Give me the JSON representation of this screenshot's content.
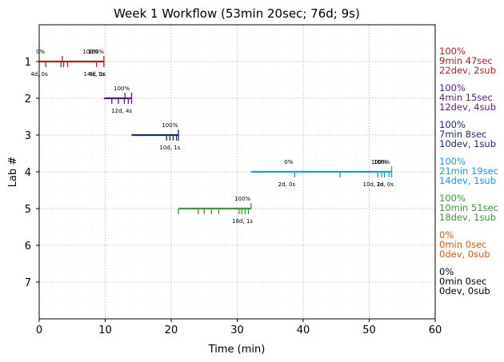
{
  "chart_data": {
    "type": "line",
    "title": "Week 1 Workflow (53min 20sec; 76d; 9s)",
    "xlabel": "Time (min)",
    "ylabel": "Lab #",
    "xlim": [
      0,
      60
    ],
    "ylim": [
      8,
      0
    ],
    "xticks": [
      "0",
      "10",
      "20",
      "30",
      "40",
      "50",
      "60"
    ],
    "yticks": [
      "1",
      "2",
      "3",
      "4",
      "5",
      "6",
      "7"
    ],
    "grid": "dotted",
    "series": [
      {
        "lab": 1,
        "color": "#b22222",
        "segment": [
          0,
          9.8
        ],
        "dev_ticks": [
          1.0,
          3.3,
          3.7,
          4.3,
          8.7,
          9.8
        ],
        "sub_ticks": [
          3.5,
          9.8
        ],
        "pct_labels": [
          {
            "x": 0.2,
            "text": "0%"
          },
          {
            "x": 7.8,
            "text": "100%"
          },
          {
            "x": 8.6,
            "text": "100%"
          }
        ],
        "stat_labels": [
          {
            "x": 0,
            "text": "4d, 0s"
          },
          {
            "x": 8.3,
            "text": "14d, 1s"
          },
          {
            "x": 8.8,
            "text": "4d, 1s"
          }
        ],
        "stats": [
          "100%",
          "9min 47sec",
          "22dev, 2sub"
        ]
      },
      {
        "lab": 2,
        "color": "#5b1a8b",
        "segment": [
          9.8,
          14.0
        ],
        "dev_ticks": [
          11.0,
          12.0,
          12.9,
          13.5,
          14.0
        ],
        "sub_ticks": [
          13.0,
          14.0
        ],
        "pct_labels": [
          {
            "x": 12.5,
            "text": "100%"
          }
        ],
        "stat_labels": [
          {
            "x": 12.5,
            "text": "12d, 4s"
          }
        ],
        "stats": [
          "100%",
          "4min 15sec",
          "12dev, 4sub"
        ]
      },
      {
        "lab": 3,
        "color": "#1c2a6e",
        "segment": [
          14.0,
          21.1
        ],
        "dev_ticks": [
          19.3,
          19.8,
          20.3,
          20.8,
          21.1
        ],
        "sub_ticks": [
          21.1
        ],
        "pct_labels": [
          {
            "x": 19.8,
            "text": "100%"
          }
        ],
        "stat_labels": [
          {
            "x": 19.8,
            "text": "10d, 1s"
          }
        ],
        "stats": [
          "100%",
          "7min 8sec",
          "10dev, 1sub"
        ]
      },
      {
        "lab": 4,
        "color": "#2196e8",
        "segment": [
          32.1,
          53.4
        ],
        "dev_ticks": [
          38.7,
          45.6,
          51.3,
          51.9,
          52.3,
          53.0,
          53.4
        ],
        "sub_ticks": [
          53.4
        ],
        "pct_labels": [
          {
            "x": 37.8,
            "text": "0%"
          },
          {
            "x": 51.5,
            "text": "100%"
          },
          {
            "x": 51.9,
            "text": "100%"
          }
        ],
        "stat_labels": [
          {
            "x": 37.5,
            "text": "2d, 0s"
          },
          {
            "x": 50.6,
            "text": "10d, 1s"
          },
          {
            "x": 52.4,
            "text": "2d, 0s"
          }
        ],
        "stats": [
          "100%",
          "21min 19sec",
          "14dev, 1sub"
        ]
      },
      {
        "lab": 5,
        "color": "#3a9a3a",
        "segment": [
          21.1,
          32.1
        ],
        "dev_ticks": [
          21.1,
          24.1,
          25.0,
          26.1,
          27.2,
          30.3,
          30.7,
          31.2,
          31.7
        ],
        "sub_ticks": [
          32.1
        ],
        "pct_labels": [
          {
            "x": 30.8,
            "text": "100%"
          }
        ],
        "stat_labels": [
          {
            "x": 30.8,
            "text": "18d, 1s"
          }
        ],
        "stats": [
          "100%",
          "10min 51sec",
          "18dev, 1sub"
        ]
      },
      {
        "lab": 6,
        "color": "#e8580c",
        "segment": null,
        "dev_ticks": [],
        "sub_ticks": [],
        "pct_labels": [],
        "stat_labels": [],
        "stats": [
          "0%",
          "0min 0sec",
          "0dev, 0sub"
        ]
      },
      {
        "lab": 7,
        "color": "#000000",
        "segment": null,
        "dev_ticks": [],
        "sub_ticks": [],
        "pct_labels": [],
        "stat_labels": [],
        "stats": [
          "0%",
          "0min 0sec",
          "0dev, 0sub"
        ]
      }
    ]
  }
}
